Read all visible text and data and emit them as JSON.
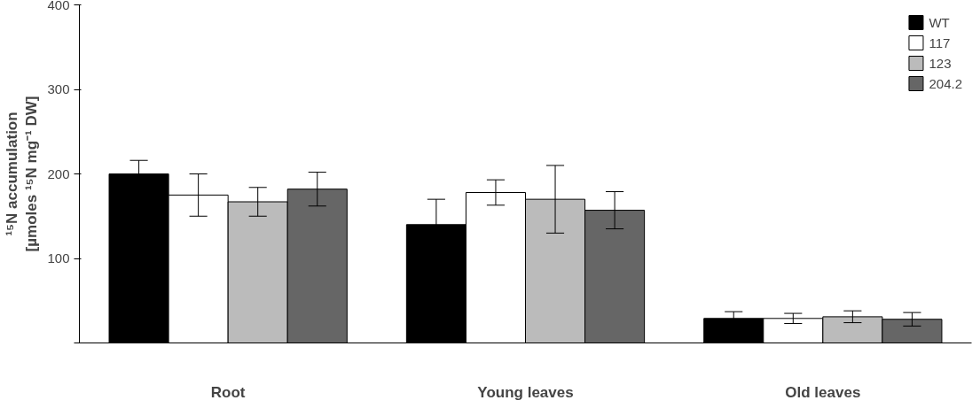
{
  "chart_data": {
    "type": "bar",
    "ylabel": "¹⁵N accumulation\n[µmoles ¹⁵N mg⁻¹ DW]",
    "categories": [
      "Root",
      "Young leaves",
      "Old leaves"
    ],
    "series": [
      {
        "name": "WT",
        "color": "#000000",
        "values": [
          200,
          140,
          29
        ],
        "errors": [
          16,
          30,
          8
        ]
      },
      {
        "name": "117",
        "color": "#ffffff",
        "values": [
          175,
          178,
          29
        ],
        "errors": [
          25,
          15,
          6
        ]
      },
      {
        "name": "123",
        "color": "#bbbbbb",
        "values": [
          167,
          170,
          31
        ],
        "errors": [
          17,
          40,
          7
        ]
      },
      {
        "name": "204.2",
        "color": "#666666",
        "values": [
          182,
          157,
          28
        ],
        "errors": [
          20,
          22,
          8
        ]
      }
    ],
    "ylim": [
      0,
      400
    ],
    "yticks": [
      {
        "value": 0,
        "label": null
      },
      100,
      200,
      300,
      400
    ],
    "grid": false,
    "legend": "top right"
  }
}
